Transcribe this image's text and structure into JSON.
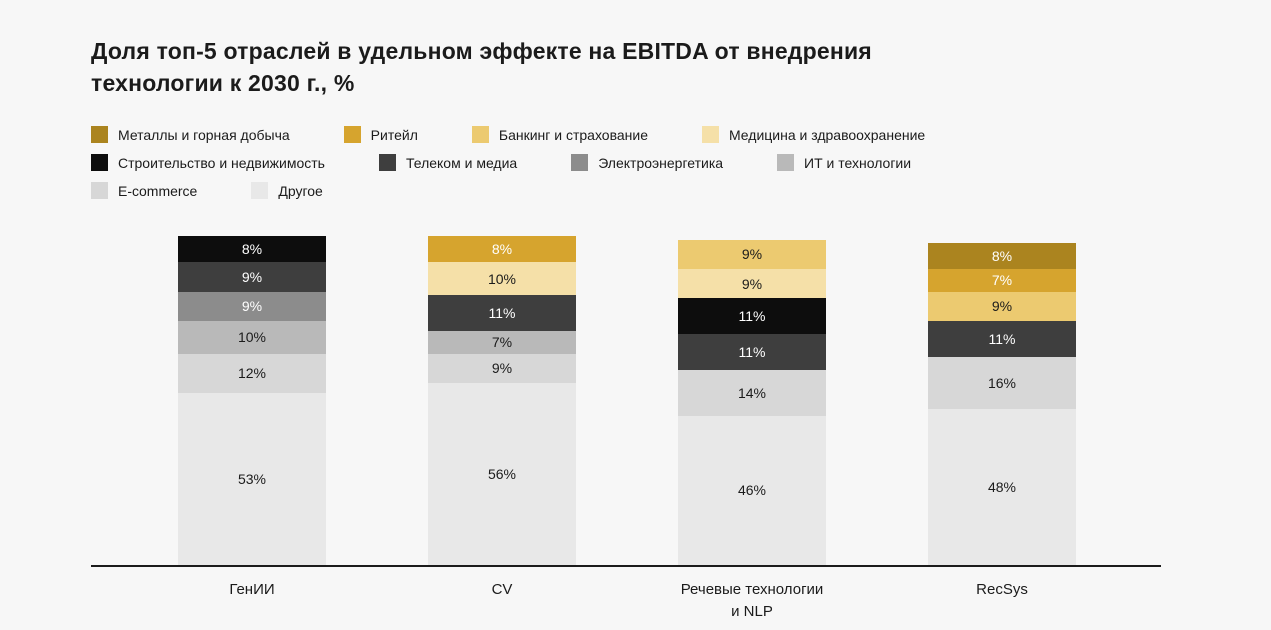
{
  "background": "#f7f7f7",
  "title": {
    "line1": "Доля топ-5 отраслей в удельном эффекте на EBITDA от внедрения",
    "line2": "технологии к 2030 г., %"
  },
  "legend_rows": [
    [
      {
        "label": "Металлы и горная добыча",
        "color": "#ab841f"
      },
      {
        "label": "Ритейл",
        "color": "#d6a42e"
      },
      {
        "label": "Банкинг и страхование",
        "color": "#ecca70"
      },
      {
        "label": "Медицина и здравоохранение",
        "color": "#f5e0a8"
      }
    ],
    [
      {
        "label": "Строительство и недвижимость",
        "color": "#0d0d0d"
      },
      {
        "label": "Телеком и медиа",
        "color": "#3e3e3e"
      },
      {
        "label": "Электроэнергетика",
        "color": "#8c8c8c"
      },
      {
        "label": "ИТ и технологии",
        "color": "#b9b9b9"
      }
    ],
    [
      {
        "label": "E-commerce",
        "color": "#d7d7d7"
      },
      {
        "label": "Другое",
        "color": "#e8e8e8"
      }
    ]
  ],
  "chart_data": {
    "type": "bar",
    "stacked": true,
    "orientation": "vertical",
    "unit": "%",
    "grid": false,
    "legend_position": "top",
    "title": "Доля топ-5 отраслей в удельном эффекте на EBITDA от внедрения технологии к 2030 г., %",
    "categories": [
      "ГенИИ",
      "CV",
      "Речевые технологии и NLP",
      "RecSys"
    ],
    "bars": [
      {
        "category": "ГенИИ",
        "display_label": "ГенИИ",
        "segments": [
          {
            "industry": "Строительство и недвижимость",
            "value": 8,
            "color": "#0d0d0d",
            "text_color": "#ffffff"
          },
          {
            "industry": "Телеком и медиа",
            "value": 9,
            "color": "#3e3e3e",
            "text_color": "#ffffff"
          },
          {
            "industry": "Электроэнергетика",
            "value": 9,
            "color": "#8c8c8c",
            "text_color": "#ffffff"
          },
          {
            "industry": "ИТ и технологии",
            "value": 10,
            "color": "#b9b9b9",
            "text_color": "#1b1b1b"
          },
          {
            "industry": "E-commerce",
            "value": 12,
            "color": "#d7d7d7",
            "text_color": "#1b1b1b"
          },
          {
            "industry": "Другое",
            "value": 53,
            "color": "#e8e8e8",
            "text_color": "#1b1b1b"
          }
        ]
      },
      {
        "category": "CV",
        "display_label": "CV",
        "segments": [
          {
            "industry": "Ритейл",
            "value": 8,
            "color": "#d6a42e",
            "text_color": "#ffffff"
          },
          {
            "industry": "Медицина и здравоохранение",
            "value": 10,
            "color": "#f5e0a8",
            "text_color": "#1b1b1b"
          },
          {
            "industry": "Телеком и медиа",
            "value": 11,
            "color": "#3e3e3e",
            "text_color": "#ffffff"
          },
          {
            "industry": "ИТ и технологии",
            "value": 7,
            "color": "#b9b9b9",
            "text_color": "#1b1b1b"
          },
          {
            "industry": "E-commerce",
            "value": 9,
            "color": "#d7d7d7",
            "text_color": "#1b1b1b"
          },
          {
            "industry": "Другое",
            "value": 56,
            "color": "#e8e8e8",
            "text_color": "#1b1b1b"
          }
        ]
      },
      {
        "category": "Речевые технологии и NLP",
        "display_label": "Речевые технологии\nи NLP",
        "segments": [
          {
            "industry": "Банкинг и страхование",
            "value": 9,
            "color": "#ecca70",
            "text_color": "#1b1b1b"
          },
          {
            "industry": "Медицина и здравоохранение",
            "value": 9,
            "color": "#f5e0a8",
            "text_color": "#1b1b1b"
          },
          {
            "industry": "Строительство и недвижимость",
            "value": 11,
            "color": "#0d0d0d",
            "text_color": "#ffffff"
          },
          {
            "industry": "Телеком и медиа",
            "value": 11,
            "color": "#3e3e3e",
            "text_color": "#ffffff"
          },
          {
            "industry": "E-commerce",
            "value": 14,
            "color": "#d7d7d7",
            "text_color": "#1b1b1b"
          },
          {
            "industry": "Другое",
            "value": 46,
            "color": "#e8e8e8",
            "text_color": "#1b1b1b"
          }
        ]
      },
      {
        "category": "RecSys",
        "display_label": "RecSys",
        "segments": [
          {
            "industry": "Металлы и горная добыча",
            "value": 8,
            "color": "#ab841f",
            "text_color": "#ffffff"
          },
          {
            "industry": "Ритейл",
            "value": 7,
            "color": "#d6a42e",
            "text_color": "#ffffff"
          },
          {
            "industry": "Банкинг и страхование",
            "value": 9,
            "color": "#ecca70",
            "text_color": "#1b1b1b"
          },
          {
            "industry": "Телеком и медиа",
            "value": 11,
            "color": "#3e3e3e",
            "text_color": "#ffffff"
          },
          {
            "industry": "E-commerce",
            "value": 16,
            "color": "#d7d7d7",
            "text_color": "#1b1b1b"
          },
          {
            "industry": "Другое",
            "value": 48,
            "color": "#e8e8e8",
            "text_color": "#1b1b1b"
          }
        ]
      }
    ]
  }
}
